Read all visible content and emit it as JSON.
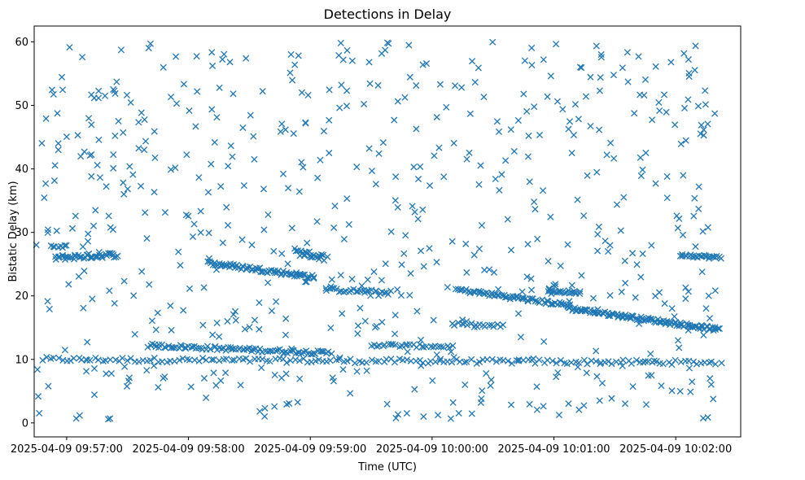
{
  "chart_data": {
    "type": "scatter",
    "title": "Detections in Delay",
    "xlabel": "Time (UTC)",
    "ylabel": "Bistatic Delay (km)",
    "marker": "x",
    "color": "#1f77b4",
    "xlim_seconds": [
      -16,
      332
    ],
    "ylim": [
      -2.2,
      62.5
    ],
    "x_origin": "2025-04-09 09:57:00",
    "x_ticks": [
      {
        "seconds": 0,
        "label": "2025-04-09 09:57:00"
      },
      {
        "seconds": 60,
        "label": "2025-04-09 09:58:00"
      },
      {
        "seconds": 120,
        "label": "2025-04-09 09:59:00"
      },
      {
        "seconds": 180,
        "label": "2025-04-09 10:00:00"
      },
      {
        "seconds": 240,
        "label": "2025-04-09 10:01:00"
      },
      {
        "seconds": 300,
        "label": "2025-04-09 10:02:00"
      }
    ],
    "y_ticks": [
      0,
      10,
      20,
      30,
      40,
      50,
      60
    ],
    "data_range_seconds": [
      -15,
      320
    ],
    "series": [
      {
        "name": "Detections",
        "tracks": [
          {
            "x_start": -12,
            "x_end": 322,
            "y_start": 10.0,
            "y_end": 9.5,
            "n": 170,
            "jitter": 0.35
          },
          {
            "x_start": 40,
            "x_end": 130,
            "y_start": 12.2,
            "y_end": 11.0,
            "n": 90,
            "jitter": 0.3
          },
          {
            "x_start": 150,
            "x_end": 190,
            "y_start": 12.3,
            "y_end": 12.0,
            "n": 30,
            "jitter": 0.25
          },
          {
            "x_start": 190,
            "x_end": 215,
            "y_start": 15.5,
            "y_end": 15.2,
            "n": 18,
            "jitter": 0.3
          },
          {
            "x_start": -6,
            "x_end": 25,
            "y_start": 26.0,
            "y_end": 26.5,
            "n": 45,
            "jitter": 0.4
          },
          {
            "x_start": 70,
            "x_end": 122,
            "y_start": 25.2,
            "y_end": 23.0,
            "n": 70,
            "jitter": 0.35
          },
          {
            "x_start": 112,
            "x_end": 128,
            "y_start": 27.0,
            "y_end": 26.0,
            "n": 25,
            "jitter": 0.5
          },
          {
            "x_start": 128,
            "x_end": 160,
            "y_start": 21.0,
            "y_end": 20.5,
            "n": 28,
            "jitter": 0.3
          },
          {
            "x_start": 192,
            "x_end": 248,
            "y_start": 21.0,
            "y_end": 18.5,
            "n": 70,
            "jitter": 0.3
          },
          {
            "x_start": 248,
            "x_end": 321,
            "y_start": 18.0,
            "y_end": 14.7,
            "n": 110,
            "jitter": 0.3
          },
          {
            "x_start": 237,
            "x_end": 253,
            "y_start": 20.8,
            "y_end": 20.5,
            "n": 20,
            "jitter": 0.25
          },
          {
            "x_start": 302,
            "x_end": 322,
            "y_start": 26.5,
            "y_end": 26.0,
            "n": 25,
            "jitter": 0.25
          },
          {
            "x_start": -8,
            "x_end": 0,
            "y_start": 27.8,
            "y_end": 27.8,
            "n": 8,
            "jitter": 0.2
          }
        ],
        "background_noise": {
          "x_range": [
            -15,
            321
          ],
          "y_range": [
            0.5,
            60
          ],
          "n": 620
        }
      }
    ]
  }
}
